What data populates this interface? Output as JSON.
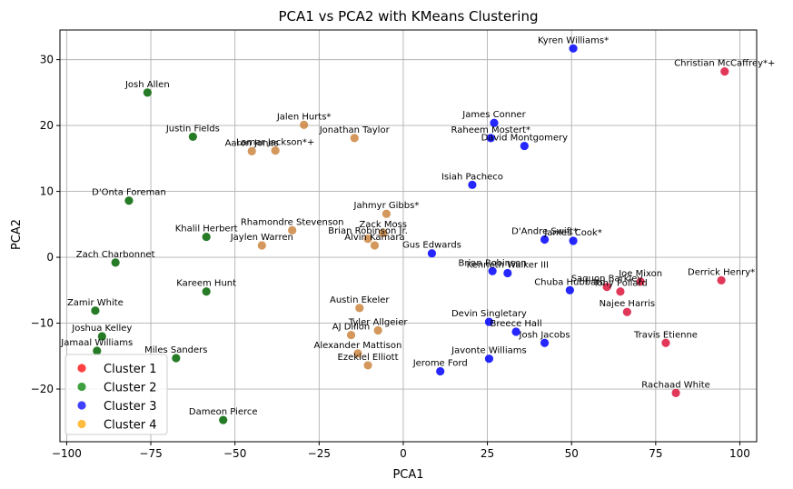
{
  "chart_data": {
    "type": "scatter",
    "title": "PCA1 vs PCA2 with KMeans Clustering",
    "xlabel": "PCA1",
    "ylabel": "PCA2",
    "xlim": [
      -102,
      105
    ],
    "ylim": [
      -28,
      34.5
    ],
    "xticks": [
      -100,
      -75,
      -50,
      -25,
      0,
      25,
      50,
      75,
      100
    ],
    "yticks": [
      -20,
      -10,
      0,
      10,
      20,
      30
    ],
    "grid": true,
    "legend": {
      "position": "lower-left",
      "entries": [
        "Cluster 1",
        "Cluster 2",
        "Cluster 3",
        "Cluster 4"
      ]
    },
    "cluster_colors": {
      "Cluster 1": "#dc143c",
      "Cluster 2": "#006400",
      "Cluster 3": "#0000ff",
      "Cluster 4": "#cd853f"
    },
    "legend_colors": [
      "#ff0000",
      "#008000",
      "#0000ff",
      "#ffa500"
    ],
    "points": [
      {
        "label": "Christian McCaffrey*+",
        "x": 95.5,
        "y": 28.2,
        "cluster": "Cluster 1"
      },
      {
        "label": "Derrick Henry*",
        "x": 94.5,
        "y": -3.5,
        "cluster": "Cluster 1"
      },
      {
        "label": "Joe Mixon",
        "x": 70.5,
        "y": -3.7,
        "cluster": "Cluster 1"
      },
      {
        "label": "Saquon Barkley",
        "x": 60.5,
        "y": -4.5,
        "cluster": "Cluster 1"
      },
      {
        "label": "Tony Pollard",
        "x": 64.5,
        "y": -5.2,
        "cluster": "Cluster 1"
      },
      {
        "label": "Najee Harris",
        "x": 66.5,
        "y": -8.3,
        "cluster": "Cluster 1"
      },
      {
        "label": "Travis Etienne",
        "x": 78,
        "y": -13,
        "cluster": "Cluster 1"
      },
      {
        "label": "Rachaad White",
        "x": 81,
        "y": -20.6,
        "cluster": "Cluster 1"
      },
      {
        "label": "Josh Allen",
        "x": -76,
        "y": 25,
        "cluster": "Cluster 2"
      },
      {
        "label": "Justin Fields",
        "x": -62.5,
        "y": 18.3,
        "cluster": "Cluster 2"
      },
      {
        "label": "D'Onta Foreman",
        "x": -81.5,
        "y": 8.6,
        "cluster": "Cluster 2"
      },
      {
        "label": "Khalil Herbert",
        "x": -58.5,
        "y": 3.1,
        "cluster": "Cluster 2"
      },
      {
        "label": "Zach Charbonnet",
        "x": -85.5,
        "y": -0.8,
        "cluster": "Cluster 2"
      },
      {
        "label": "Kareem Hunt",
        "x": -58.5,
        "y": -5.2,
        "cluster": "Cluster 2"
      },
      {
        "label": "Zamir White",
        "x": -91.5,
        "y": -8.1,
        "cluster": "Cluster 2"
      },
      {
        "label": "Joshua Kelley",
        "x": -89.5,
        "y": -12,
        "cluster": "Cluster 2"
      },
      {
        "label": "Jamaal Williams",
        "x": -91,
        "y": -14.2,
        "cluster": "Cluster 2"
      },
      {
        "label": "Miles Sanders",
        "x": -67.5,
        "y": -15.3,
        "cluster": "Cluster 2"
      },
      {
        "label": "Dameon Pierce",
        "x": -53.5,
        "y": -24.7,
        "cluster": "Cluster 2"
      },
      {
        "label": "Kyren Williams*",
        "x": 50.5,
        "y": 31.7,
        "cluster": "Cluster 3"
      },
      {
        "label": "James Conner",
        "x": 27,
        "y": 20.4,
        "cluster": "Cluster 3"
      },
      {
        "label": "Raheem Mostert*",
        "x": 26,
        "y": 18.1,
        "cluster": "Cluster 3"
      },
      {
        "label": "David Montgomery",
        "x": 36,
        "y": 16.9,
        "cluster": "Cluster 3"
      },
      {
        "label": "Isiah Pacheco",
        "x": 20.5,
        "y": 11,
        "cluster": "Cluster 3"
      },
      {
        "label": "D'Andre Swift*",
        "x": 42,
        "y": 2.7,
        "cluster": "Cluster 3"
      },
      {
        "label": "James Cook*",
        "x": 50.5,
        "y": 2.5,
        "cluster": "Cluster 3"
      },
      {
        "label": "Gus Edwards",
        "x": 8.5,
        "y": 0.6,
        "cluster": "Cluster 3"
      },
      {
        "label": "Brian Robinson",
        "x": 26.5,
        "y": -2.1,
        "cluster": "Cluster 3"
      },
      {
        "label": "Kenneth Walker III",
        "x": 31,
        "y": -2.4,
        "cluster": "Cluster 3"
      },
      {
        "label": "Chuba Hubbard",
        "x": 49.5,
        "y": -5,
        "cluster": "Cluster 3"
      },
      {
        "label": "Devin Singletary",
        "x": 25.5,
        "y": -9.8,
        "cluster": "Cluster 3"
      },
      {
        "label": "Breece Hall",
        "x": 33.5,
        "y": -11.3,
        "cluster": "Cluster 3"
      },
      {
        "label": "Josh Jacobs",
        "x": 42,
        "y": -13,
        "cluster": "Cluster 3"
      },
      {
        "label": "Javonte Williams",
        "x": 25.5,
        "y": -15.4,
        "cluster": "Cluster 3"
      },
      {
        "label": "Jerome Ford",
        "x": 11,
        "y": -17.3,
        "cluster": "Cluster 3"
      },
      {
        "label": "Jalen Hurts*",
        "x": -29.5,
        "y": 20.1,
        "cluster": "Cluster 4"
      },
      {
        "label": "Jonathan Taylor",
        "x": -14.5,
        "y": 18.1,
        "cluster": "Cluster 4"
      },
      {
        "label": "Aaron Jones",
        "x": -45,
        "y": 16.1,
        "cluster": "Cluster 4"
      },
      {
        "label": "Lamar Jackson*+",
        "x": -38,
        "y": 16.2,
        "cluster": "Cluster 4"
      },
      {
        "label": "Jahmyr Gibbs*",
        "x": -5,
        "y": 6.6,
        "cluster": "Cluster 4"
      },
      {
        "label": "Rhamondre Stevenson",
        "x": -33,
        "y": 4.1,
        "cluster": "Cluster 4"
      },
      {
        "label": "Zack Moss",
        "x": -6,
        "y": 3.7,
        "cluster": "Cluster 4"
      },
      {
        "label": "Brian Robinson Jr.",
        "x": -10.5,
        "y": 2.8,
        "cluster": "Cluster 4"
      },
      {
        "label": "Jaylen Warren",
        "x": -42,
        "y": 1.8,
        "cluster": "Cluster 4"
      },
      {
        "label": "Alvin Kamara",
        "x": -8.5,
        "y": 1.8,
        "cluster": "Cluster 4"
      },
      {
        "label": "Austin Ekeler",
        "x": -13,
        "y": -7.7,
        "cluster": "Cluster 4"
      },
      {
        "label": "Tyler Allgeier",
        "x": -7.5,
        "y": -11.1,
        "cluster": "Cluster 4"
      },
      {
        "label": "AJ Dillon",
        "x": -15.5,
        "y": -11.8,
        "cluster": "Cluster 4"
      },
      {
        "label": "Alexander Mattison",
        "x": -13.5,
        "y": -14.6,
        "cluster": "Cluster 4"
      },
      {
        "label": "Ezekiel Elliott",
        "x": -10.5,
        "y": -16.4,
        "cluster": "Cluster 4"
      }
    ]
  }
}
